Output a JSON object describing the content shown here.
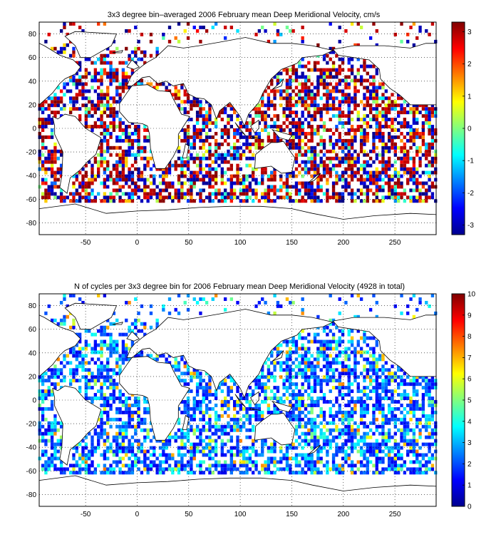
{
  "chart_data": [
    {
      "type": "heatmap",
      "title": "3x3 degree bin–averaged 2006 February mean Deep Meridional Velocity, cm/s",
      "xlabel": "",
      "ylabel": "",
      "xlim": [
        -95,
        290
      ],
      "ylim": [
        -90,
        90
      ],
      "x_ticks": [
        -50,
        0,
        50,
        100,
        150,
        200,
        250
      ],
      "y_ticks": [
        80,
        60,
        40,
        20,
        0,
        -20,
        -40,
        -60,
        -80
      ],
      "grid": "dotted",
      "bin_size_deg": 3,
      "colorbar": {
        "range": [
          -3.3,
          3.3
        ],
        "ticks": [
          3,
          2,
          1,
          0,
          -1,
          -2,
          -3
        ],
        "colormap": "jet",
        "position": "right"
      },
      "value_range": [
        -3.3,
        3.3
      ]
    },
    {
      "type": "heatmap",
      "title": "N of cycles per 3x3 degree bin for 2006 February mean Deep Meridional Velocity (4928 in total)",
      "xlabel": "",
      "ylabel": "",
      "xlim": [
        -95,
        290
      ],
      "ylim": [
        -90,
        90
      ],
      "x_ticks": [
        -50,
        0,
        50,
        100,
        150,
        200,
        250
      ],
      "y_ticks": [
        80,
        60,
        40,
        20,
        0,
        -20,
        -40,
        -60,
        -80
      ],
      "grid": "dotted",
      "bin_size_deg": 3,
      "total_cycles": 4928,
      "colorbar": {
        "range": [
          0,
          10
        ],
        "ticks": [
          10,
          9,
          8,
          7,
          6,
          5,
          4,
          3,
          2,
          1,
          0
        ],
        "colormap": "jet",
        "position": "right"
      },
      "value_range": [
        1,
        10
      ]
    }
  ]
}
